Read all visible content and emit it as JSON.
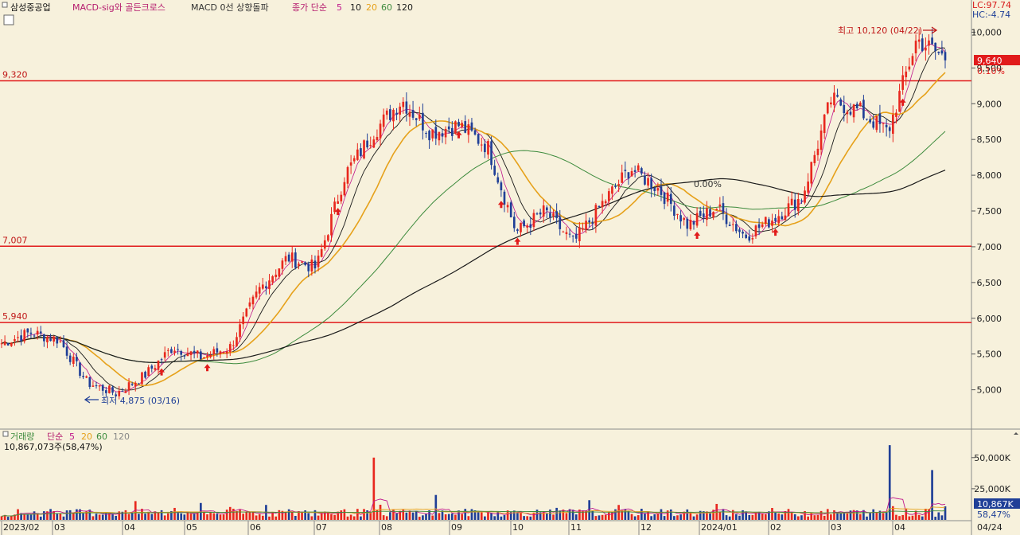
{
  "header": {
    "stock": "삼성중공업",
    "ind1": "MACD-sig와 골든크로스",
    "ind2": "MACD 0선 상향돌파",
    "ma_prefix": "종가 단순",
    "ma_periods": [
      "5",
      "10",
      "20",
      "60",
      "120"
    ]
  },
  "right_info": {
    "lc": "LC:97.74",
    "hc": "HC:-4.74"
  },
  "price_badge": {
    "value": "9,640",
    "change": "0.10%"
  },
  "annotations": {
    "high": "최고 10,120 (04/22)",
    "low": "최저 4,875 (03/16)",
    "mid": "0.00%"
  },
  "hlines": [
    {
      "label": "9,320",
      "value": 9320
    },
    {
      "label": "7,007",
      "value": 7007
    },
    {
      "label": "5,940",
      "value": 5940
    }
  ],
  "volume_header": {
    "title": "거래량",
    "ma_prefix": "단순",
    "ma_periods": [
      "5",
      "20",
      "60",
      "120"
    ],
    "last": "10,867,073주(58,47%)"
  },
  "volume_badge": {
    "value": "10,867K",
    "pct": "58,47%"
  },
  "colors": {
    "up": "#e8281e",
    "down": "#1f3f97",
    "ma5": "#c0168c",
    "ma10": "#1a1a1a",
    "ma20": "#e6a11a",
    "ma60": "#3d8b3d",
    "ma120": "#1a1a1a",
    "hline": "#e11b1b"
  },
  "chart_data": [
    {
      "type": "line",
      "name": "price",
      "y_ticks": [
        "10,000",
        "9,500",
        "9,000",
        "8,500",
        "8,000",
        "7,500",
        "7,000",
        "6,500",
        "6,000",
        "5,500",
        "5,000"
      ],
      "y_tick_values": [
        10000,
        9500,
        9000,
        8500,
        8000,
        7500,
        7000,
        6500,
        6000,
        5500,
        5000
      ],
      "ylim": [
        4450,
        10450
      ],
      "x_labels": [
        "2023/02",
        "03",
        "04",
        "05",
        "06",
        "07",
        "08",
        "09",
        "10",
        "11",
        "12",
        "2024/01",
        "02",
        "03",
        "04",
        "04/24"
      ],
      "key_points": [
        {
          "d": "2023/02",
          "v": 5650
        },
        {
          "d": "2023/02",
          "v": 5800
        },
        {
          "d": "03",
          "v": 5700
        },
        {
          "d": "03",
          "v": 5100
        },
        {
          "d": "03/16",
          "v": 4950
        },
        {
          "d": "04",
          "v": 5200
        },
        {
          "d": "04",
          "v": 5600
        },
        {
          "d": "05",
          "v": 5450
        },
        {
          "d": "05",
          "v": 5600
        },
        {
          "d": "06",
          "v": 6400
        },
        {
          "d": "06",
          "v": 6850
        },
        {
          "d": "07",
          "v": 6700
        },
        {
          "d": "07",
          "v": 8000
        },
        {
          "d": "07",
          "v": 8600
        },
        {
          "d": "08",
          "v": 9050
        },
        {
          "d": "08",
          "v": 8600
        },
        {
          "d": "09",
          "v": 8700
        },
        {
          "d": "09",
          "v": 8400
        },
        {
          "d": "10",
          "v": 7200
        },
        {
          "d": "10",
          "v": 7500
        },
        {
          "d": "11",
          "v": 7050
        },
        {
          "d": "11",
          "v": 7600
        },
        {
          "d": "12",
          "v": 8100
        },
        {
          "d": "12",
          "v": 7800
        },
        {
          "d": "2024/01",
          "v": 7300
        },
        {
          "d": "2024/01",
          "v": 7550
        },
        {
          "d": "02",
          "v": 7150
        },
        {
          "d": "02",
          "v": 7400
        },
        {
          "d": "03",
          "v": 7700
        },
        {
          "d": "03",
          "v": 9050
        },
        {
          "d": "03",
          "v": 8900
        },
        {
          "d": "04",
          "v": 8600
        },
        {
          "d": "04/22",
          "v": 9900
        },
        {
          "d": "04/24",
          "v": 9640
        }
      ]
    },
    {
      "type": "bar",
      "name": "volume",
      "y_ticks": [
        "50,000K",
        "25,000K"
      ],
      "y_tick_values": [
        50000,
        25000
      ],
      "ylim": [
        0,
        62000
      ],
      "unit": "K",
      "spikes": [
        {
          "d": "07",
          "v": 50000
        },
        {
          "d": "08",
          "v": 20000
        },
        {
          "d": "03",
          "v": 60000
        },
        {
          "d": "04",
          "v": 40000
        },
        {
          "d": "04/24",
          "v": 10867
        }
      ]
    }
  ]
}
